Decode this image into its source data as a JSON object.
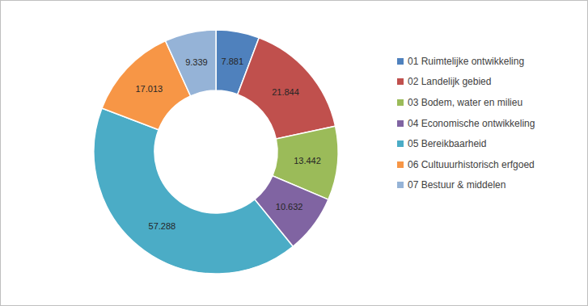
{
  "chart_data": {
    "type": "donut",
    "categories": [
      "01 Ruimtelijke ontwikkeling",
      "02 Landelijk gebied",
      "03 Bodem, water en milieu",
      "04 Economische ontwikkeling",
      "05 Bereikbaarheid",
      "06 Cultuuurhistorisch erfgoed",
      "07 Bestuur & middelen"
    ],
    "values": [
      7.881,
      21.844,
      13.442,
      10.632,
      57.288,
      17.013,
      9.339
    ],
    "colors": [
      "#4f81bd",
      "#c0504d",
      "#9bbb59",
      "#8064a2",
      "#4bacc6",
      "#f79646",
      "#95b3d7"
    ],
    "data_labels": true,
    "legend": "right"
  }
}
